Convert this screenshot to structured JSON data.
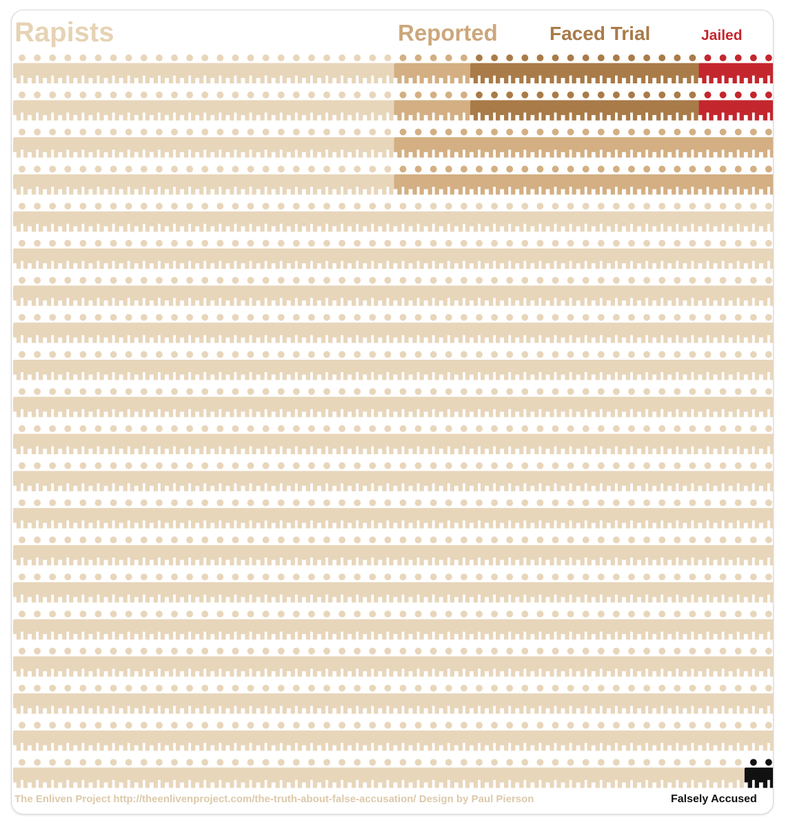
{
  "titles": {
    "rapists": "Rapists",
    "reported": "Reported",
    "faced_trial": "Faced Trial",
    "jailed": "Jailed"
  },
  "footer": {
    "credit": "The Enliven Project http://theenlivenproject.com/the-truth-about-false-accusation/ Design by Paul Pierson",
    "falsely_accused": "Falsely Accused"
  },
  "colors": {
    "rapists": "#e8d6bb",
    "reported": "#d3af83",
    "faced_trial": "#a97b48",
    "jailed": "#c4262e",
    "falsely_accused": "#111111"
  },
  "chart_data": {
    "type": "pictograph",
    "unit_icon": "person-icon",
    "rows": 20,
    "columns": 50,
    "total_icons": 1000,
    "categories": [
      {
        "name": "Rapists",
        "count": 1000
      },
      {
        "name": "Reported",
        "count": 100
      },
      {
        "name": "Faced Trial",
        "count": 40
      },
      {
        "name": "Jailed",
        "count": 10
      },
      {
        "name": "Falsely Accused",
        "count": 2
      }
    ]
  }
}
